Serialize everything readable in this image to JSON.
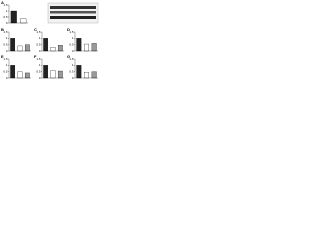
{
  "chart_data": [
    {
      "type": "bar",
      "label": "A",
      "categories": [
        null,
        null
      ],
      "values": [
        1,
        0.35
      ],
      "colors": [
        "#222222",
        "#ffffff"
      ],
      "ylim": [
        0,
        1.5
      ],
      "yticks": [
        0,
        0.5,
        1,
        1.5
      ]
    },
    {
      "type": "bar",
      "label": "B",
      "categories": [
        null,
        null,
        null
      ],
      "values": [
        1,
        0.4,
        0.5
      ],
      "colors": [
        "#222222",
        "#ffffff",
        "#999999"
      ],
      "ylim": [
        0,
        1.5
      ],
      "yticks": [
        0,
        0.5,
        1,
        1.5
      ]
    },
    {
      "type": "bar",
      "label": "C",
      "categories": [
        null,
        null,
        null
      ],
      "values": [
        1,
        0.3,
        0.45
      ],
      "colors": [
        "#222222",
        "#ffffff",
        "#999999"
      ],
      "ylim": [
        0,
        1.5
      ],
      "yticks": [
        0,
        0.5,
        1,
        1.5
      ]
    },
    {
      "type": "bar",
      "label": "D",
      "categories": [
        null,
        null,
        null
      ],
      "values": [
        1,
        0.55,
        0.6
      ],
      "colors": [
        "#222222",
        "#ffffff",
        "#999999"
      ],
      "ylim": [
        0,
        1.5
      ],
      "yticks": [
        0,
        0.5,
        1,
        1.5
      ]
    },
    {
      "type": "bar",
      "label": "E",
      "categories": [
        null,
        null,
        null
      ],
      "values": [
        1,
        0.5,
        0.4
      ],
      "colors": [
        "#222222",
        "#ffffff",
        "#999999"
      ],
      "ylim": [
        0,
        1.5
      ],
      "yticks": [
        0,
        0.5,
        1,
        1.5
      ]
    },
    {
      "type": "bar",
      "label": "F",
      "categories": [
        null,
        null,
        null
      ],
      "values": [
        1,
        0.6,
        0.55
      ],
      "colors": [
        "#222222",
        "#ffffff",
        "#999999"
      ],
      "ylim": [
        0,
        1.5
      ],
      "yticks": [
        0,
        0.5,
        1,
        1.5
      ]
    },
    {
      "type": "bar",
      "label": "G",
      "categories": [
        null,
        null,
        null
      ],
      "values": [
        1,
        0.45,
        0.5
      ],
      "colors": [
        "#222222",
        "#ffffff",
        "#999999"
      ],
      "ylim": [
        0,
        1.5
      ],
      "yticks": [
        0,
        0.5,
        1,
        1.5
      ]
    }
  ]
}
